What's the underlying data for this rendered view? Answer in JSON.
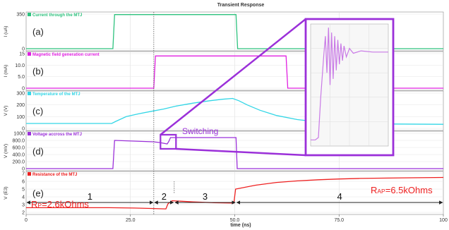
{
  "chart_data": {
    "type": "line",
    "title": "Transient Response",
    "xlabel": "time (ns)",
    "xlim": [
      0,
      100
    ],
    "xticks": [
      "0",
      "25.0",
      "50.0",
      "75.0",
      "100"
    ],
    "grid": true,
    "panels": [
      {
        "letter": "(a)",
        "series_label": "Current through the MTJ",
        "ylabel": "I (uA)",
        "yticks": [
          "350",
          "0"
        ],
        "ylim": [
          0,
          350
        ],
        "color": "#2ec27e",
        "points": [
          [
            0,
            0
          ],
          [
            20.8,
            0
          ],
          [
            21.2,
            345
          ],
          [
            50.3,
            345
          ],
          [
            50.7,
            0
          ],
          [
            100,
            0
          ]
        ]
      },
      {
        "letter": "(b)",
        "series_label": "Magnetic field generation current",
        "ylabel": "I (mA)",
        "yticks": [
          "15",
          "10.0",
          "5.0",
          "0"
        ],
        "ylim": [
          0,
          15
        ],
        "color": "#e020e0",
        "points": [
          [
            0,
            0
          ],
          [
            30.6,
            0
          ],
          [
            31,
            14
          ],
          [
            62.3,
            14
          ],
          [
            62.7,
            0
          ],
          [
            100,
            0
          ]
        ]
      },
      {
        "letter": "(c)",
        "series_label": "Temperature of the MTJ",
        "ylabel": "V (V)",
        "yticks": [
          "300",
          "200",
          "100",
          "0"
        ],
        "ylim": [
          0,
          300
        ],
        "color": "#33d6e6",
        "points": [
          [
            0,
            42
          ],
          [
            20.5,
            42
          ],
          [
            21.5,
            60
          ],
          [
            24,
            100
          ],
          [
            27,
            125
          ],
          [
            30,
            145
          ],
          [
            33,
            165
          ],
          [
            36,
            190
          ],
          [
            40,
            215
          ],
          [
            44,
            235
          ],
          [
            47,
            248
          ],
          [
            49.5,
            255
          ],
          [
            51,
            235
          ],
          [
            53,
            200
          ],
          [
            56,
            155
          ],
          [
            60,
            110
          ],
          [
            65,
            75
          ],
          [
            70,
            55
          ],
          [
            75,
            45
          ],
          [
            85,
            38
          ],
          [
            100,
            35
          ]
        ]
      },
      {
        "letter": "(d)",
        "series_label": "Voltage accross the MTJ",
        "ylabel": "V (mV)",
        "yticks": [
          "1000",
          "800.0",
          "600.0",
          "400.0",
          "200.0",
          "0"
        ],
        "ylim": [
          0,
          1000
        ],
        "color": "#9b30d9",
        "points": [
          [
            0,
            0
          ],
          [
            20.8,
            0
          ],
          [
            21.2,
            800
          ],
          [
            30.5,
            760
          ],
          [
            32,
            740
          ],
          [
            33.8,
            700
          ],
          [
            34.2,
            770
          ],
          [
            34.6,
            880
          ],
          [
            35,
            880
          ],
          [
            50.3,
            880
          ],
          [
            50.6,
            0
          ],
          [
            100,
            0
          ]
        ]
      },
      {
        "letter": "(e)",
        "series_label": "Resistance of the MTJ",
        "ylabel": "V (E3)",
        "yticks": [
          "7",
          "6",
          "5",
          "4",
          "3",
          "2"
        ],
        "ylim": [
          2,
          7
        ],
        "color": "#ee2020",
        "points": [
          [
            0,
            2.6
          ],
          [
            20,
            2.6
          ],
          [
            26,
            2.55
          ],
          [
            30,
            2.5
          ],
          [
            33.5,
            2.45
          ],
          [
            34,
            3.1
          ],
          [
            35,
            3.5
          ],
          [
            40,
            3.35
          ],
          [
            45,
            3.25
          ],
          [
            49.8,
            3.2
          ],
          [
            50.2,
            5.0
          ],
          [
            55,
            5.5
          ],
          [
            60,
            5.85
          ],
          [
            65,
            6.05
          ],
          [
            70,
            6.2
          ],
          [
            75,
            6.3
          ],
          [
            80,
            6.37
          ],
          [
            90,
            6.45
          ],
          [
            100,
            6.5
          ]
        ]
      }
    ],
    "annotations": {
      "switching": "Switching",
      "rp": "RP=2.6kOhms",
      "rap": "RAP=6.5kOhms",
      "segments": [
        "1",
        "2",
        "3",
        "4"
      ],
      "segment_bounds_ns": [
        0,
        30.6,
        35.5,
        50.3,
        100
      ]
    },
    "inset": {
      "color": "#c97ae6",
      "description_points": [
        [
          0,
          0.05
        ],
        [
          0.06,
          0.05
        ],
        [
          0.1,
          0.07
        ],
        [
          0.13,
          0.4
        ],
        [
          0.17,
          0.75
        ],
        [
          0.19,
          0.9
        ],
        [
          0.21,
          0.6
        ],
        [
          0.23,
          0.97
        ],
        [
          0.25,
          0.5
        ],
        [
          0.27,
          0.93
        ],
        [
          0.29,
          0.55
        ],
        [
          0.31,
          0.9
        ],
        [
          0.33,
          0.62
        ],
        [
          0.35,
          0.87
        ],
        [
          0.37,
          0.67
        ],
        [
          0.39,
          0.84
        ],
        [
          0.41,
          0.7
        ],
        [
          0.43,
          0.82
        ],
        [
          0.46,
          0.73
        ],
        [
          0.5,
          0.8
        ],
        [
          0.55,
          0.76
        ],
        [
          0.65,
          0.78
        ],
        [
          0.8,
          0.77
        ],
        [
          1,
          0.77
        ]
      ]
    }
  }
}
